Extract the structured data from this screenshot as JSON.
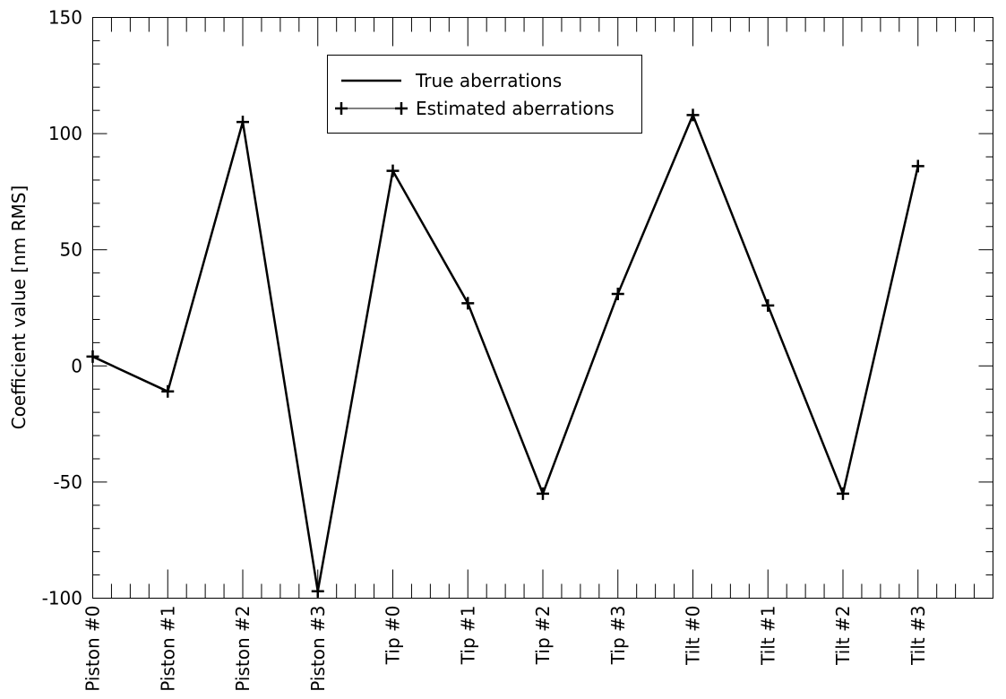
{
  "chart_data": {
    "type": "line",
    "ylabel": "Coefficient value [nm RMS]",
    "xlabel": "",
    "ylim": [
      -100,
      150
    ],
    "yticks": [
      -100,
      -50,
      0,
      50,
      100,
      150
    ],
    "ytick_labels": [
      "-100",
      "-50",
      "0",
      "50",
      "100",
      "150"
    ],
    "y_minor_step": 10,
    "x_minor_per_major": 4,
    "grid": false,
    "legend_position": "top-center",
    "categories": [
      "Piston #0",
      "Piston #1",
      "Piston #2",
      "Piston #3",
      "Tip #0",
      "Tip #1",
      "Tip #2",
      "Tip #3",
      "Tilt #0",
      "Tilt #1",
      "Tilt #2",
      "Tilt #3"
    ],
    "series": [
      {
        "name": "True aberrations",
        "style": "line",
        "color": "#000000",
        "values": [
          4,
          -11,
          105,
          -97,
          84,
          27,
          -55,
          31,
          108,
          26,
          -55,
          86
        ]
      },
      {
        "name": "Estimated aberrations",
        "style": "line-plus",
        "color": "#000000",
        "values": [
          4,
          -11,
          105,
          -97,
          84,
          27,
          -55,
          31,
          108,
          26,
          -55,
          86
        ]
      }
    ]
  }
}
